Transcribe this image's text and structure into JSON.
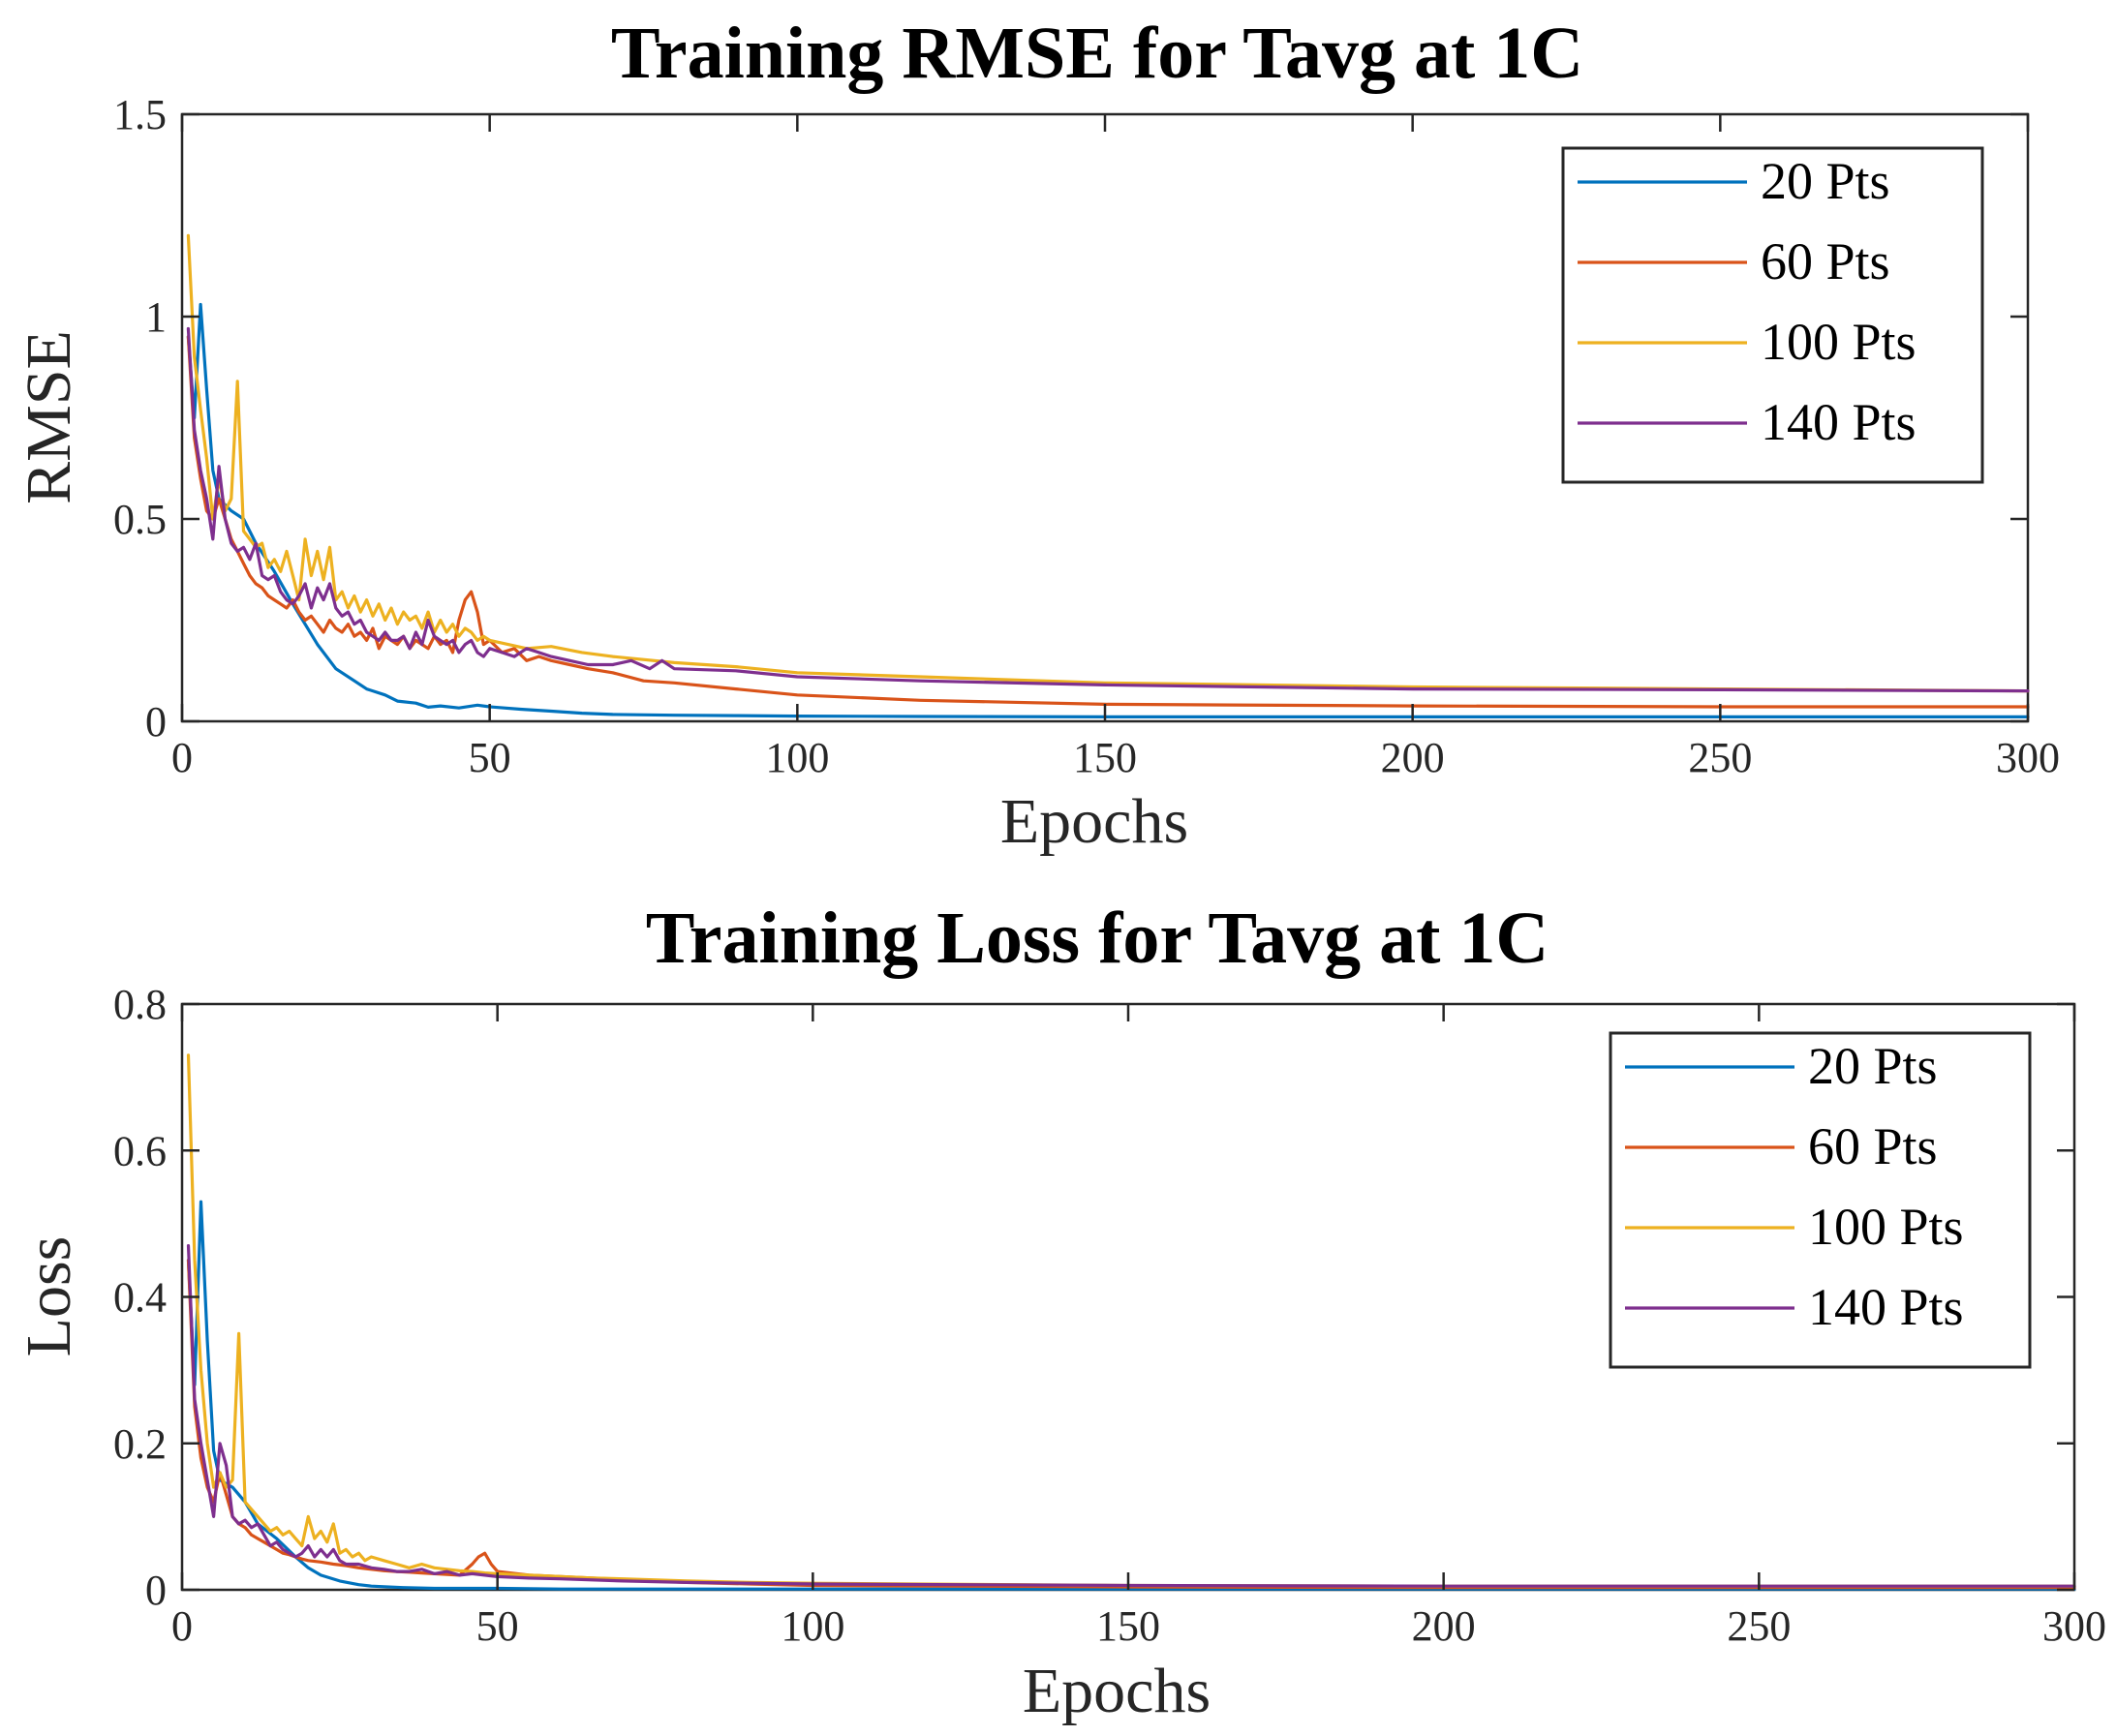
{
  "chart_data": [
    {
      "type": "line",
      "title": "Training RMSE for Tavg at 1C",
      "xlabel": "Epochs",
      "ylabel": "RMSE",
      "xlim": [
        0,
        300
      ],
      "ylim": [
        0,
        1.5
      ],
      "xticks": [
        0,
        50,
        100,
        150,
        200,
        250,
        300
      ],
      "xtick_labels": [
        "0",
        "50",
        "100",
        "150",
        "200",
        "250",
        "300"
      ],
      "yticks": [
        0,
        0.5,
        1,
        1.5
      ],
      "ytick_labels": [
        "0",
        "0.5",
        "1",
        "1.5"
      ],
      "grid": false,
      "legend_position": "top-right",
      "series": [
        {
          "name": "20 Pts",
          "color": "#0072BD",
          "x": [
            1,
            2,
            3,
            4,
            5,
            6,
            8,
            10,
            12,
            15,
            18,
            20,
            22,
            25,
            28,
            30,
            33,
            35,
            38,
            40,
            42,
            45,
            48,
            50,
            55,
            60,
            65,
            70,
            80,
            90,
            100,
            120,
            150,
            200,
            250,
            300
          ],
          "values": [
            0.95,
            0.75,
            1.03,
            0.82,
            0.62,
            0.55,
            0.52,
            0.5,
            0.44,
            0.37,
            0.29,
            0.24,
            0.19,
            0.13,
            0.1,
            0.08,
            0.065,
            0.05,
            0.045,
            0.035,
            0.038,
            0.033,
            0.04,
            0.036,
            0.03,
            0.025,
            0.02,
            0.017,
            0.015,
            0.014,
            0.013,
            0.012,
            0.011,
            0.011,
            0.011,
            0.011
          ]
        },
        {
          "name": "60 Pts",
          "color": "#D95319",
          "x": [
            1,
            2,
            3,
            4,
            5,
            6,
            7,
            8,
            9,
            10,
            11,
            12,
            13,
            14,
            15,
            16,
            17,
            18,
            19,
            20,
            21,
            22,
            23,
            24,
            25,
            26,
            27,
            28,
            29,
            30,
            31,
            32,
            33,
            34,
            35,
            36,
            37,
            38,
            39,
            40,
            41,
            42,
            43,
            44,
            45,
            46,
            47,
            48,
            49,
            50,
            52,
            54,
            56,
            58,
            60,
            63,
            66,
            70,
            75,
            80,
            90,
            100,
            120,
            150,
            200,
            250,
            300
          ],
          "values": [
            0.95,
            0.7,
            0.6,
            0.52,
            0.5,
            0.55,
            0.5,
            0.45,
            0.42,
            0.39,
            0.36,
            0.34,
            0.33,
            0.31,
            0.3,
            0.29,
            0.28,
            0.3,
            0.27,
            0.25,
            0.26,
            0.24,
            0.22,
            0.25,
            0.23,
            0.22,
            0.24,
            0.21,
            0.22,
            0.2,
            0.23,
            0.18,
            0.21,
            0.2,
            0.19,
            0.21,
            0.18,
            0.2,
            0.19,
            0.18,
            0.21,
            0.19,
            0.2,
            0.17,
            0.25,
            0.3,
            0.32,
            0.27,
            0.19,
            0.2,
            0.17,
            0.18,
            0.15,
            0.16,
            0.15,
            0.14,
            0.13,
            0.12,
            0.1,
            0.095,
            0.08,
            0.065,
            0.052,
            0.042,
            0.038,
            0.036,
            0.036
          ]
        },
        {
          "name": "100 Pts",
          "color": "#EDB120",
          "x": [
            1,
            2,
            3,
            4,
            5,
            6,
            7,
            8,
            9,
            10,
            11,
            12,
            13,
            14,
            15,
            16,
            17,
            18,
            19,
            20,
            21,
            22,
            23,
            24,
            25,
            26,
            27,
            28,
            29,
            30,
            31,
            32,
            33,
            34,
            35,
            36,
            37,
            38,
            39,
            40,
            41,
            42,
            43,
            44,
            45,
            46,
            47,
            48,
            49,
            50,
            53,
            56,
            60,
            65,
            70,
            80,
            90,
            100,
            120,
            150,
            200,
            250,
            300
          ],
          "values": [
            1.2,
            0.9,
            0.77,
            0.65,
            0.5,
            0.6,
            0.52,
            0.55,
            0.84,
            0.47,
            0.45,
            0.43,
            0.44,
            0.38,
            0.4,
            0.37,
            0.42,
            0.36,
            0.3,
            0.45,
            0.36,
            0.42,
            0.35,
            0.43,
            0.3,
            0.32,
            0.28,
            0.31,
            0.27,
            0.3,
            0.26,
            0.29,
            0.25,
            0.28,
            0.24,
            0.27,
            0.25,
            0.26,
            0.23,
            0.27,
            0.22,
            0.25,
            0.22,
            0.24,
            0.21,
            0.23,
            0.22,
            0.2,
            0.21,
            0.2,
            0.19,
            0.18,
            0.185,
            0.17,
            0.16,
            0.145,
            0.135,
            0.12,
            0.11,
            0.095,
            0.085,
            0.08,
            0.075
          ]
        },
        {
          "name": "140 Pts",
          "color": "#7E2F8E",
          "x": [
            1,
            2,
            3,
            4,
            5,
            6,
            7,
            8,
            9,
            10,
            11,
            12,
            13,
            14,
            15,
            16,
            17,
            18,
            19,
            20,
            21,
            22,
            23,
            24,
            25,
            26,
            27,
            28,
            29,
            30,
            31,
            32,
            33,
            34,
            35,
            36,
            37,
            38,
            39,
            40,
            41,
            42,
            43,
            44,
            45,
            46,
            47,
            48,
            49,
            50,
            52,
            54,
            56,
            58,
            60,
            63,
            66,
            70,
            73,
            76,
            78,
            80,
            90,
            100,
            120,
            150,
            200,
            250,
            300
          ],
          "values": [
            0.97,
            0.72,
            0.62,
            0.55,
            0.45,
            0.63,
            0.5,
            0.44,
            0.42,
            0.43,
            0.4,
            0.44,
            0.36,
            0.35,
            0.36,
            0.32,
            0.3,
            0.29,
            0.31,
            0.34,
            0.28,
            0.33,
            0.3,
            0.34,
            0.28,
            0.26,
            0.27,
            0.24,
            0.25,
            0.22,
            0.21,
            0.2,
            0.22,
            0.2,
            0.2,
            0.21,
            0.18,
            0.22,
            0.19,
            0.25,
            0.21,
            0.2,
            0.19,
            0.2,
            0.17,
            0.19,
            0.2,
            0.17,
            0.16,
            0.18,
            0.17,
            0.16,
            0.18,
            0.17,
            0.16,
            0.15,
            0.14,
            0.14,
            0.15,
            0.13,
            0.15,
            0.13,
            0.125,
            0.11,
            0.1,
            0.09,
            0.08,
            0.078,
            0.075
          ]
        }
      ]
    },
    {
      "type": "line",
      "title": "Training Loss for Tavg at 1C",
      "xlabel": "Epochs",
      "ylabel": "Loss",
      "xlim": [
        0,
        300
      ],
      "ylim": [
        0,
        0.8
      ],
      "xticks": [
        0,
        50,
        100,
        150,
        200,
        250,
        300
      ],
      "xtick_labels": [
        "0",
        "50",
        "100",
        "150",
        "200",
        "250",
        "300"
      ],
      "yticks": [
        0,
        0.2,
        0.4,
        0.6,
        0.8
      ],
      "ytick_labels": [
        "0",
        "0.2",
        "0.4",
        "0.6",
        "0.8"
      ],
      "grid": false,
      "legend_position": "top-right",
      "series": [
        {
          "name": "20 Pts",
          "color": "#0072BD",
          "x": [
            1,
            2,
            3,
            4,
            5,
            6,
            8,
            10,
            12,
            15,
            18,
            20,
            22,
            25,
            28,
            30,
            35,
            40,
            50,
            60,
            80,
            100,
            150,
            200,
            250,
            300
          ],
          "values": [
            0.45,
            0.28,
            0.53,
            0.34,
            0.19,
            0.15,
            0.14,
            0.12,
            0.09,
            0.07,
            0.045,
            0.03,
            0.02,
            0.012,
            0.007,
            0.005,
            0.003,
            0.002,
            0.002,
            0.001,
            0.001,
            0.001,
            0.001,
            0.001,
            0.001,
            0.001
          ]
        },
        {
          "name": "60 Pts",
          "color": "#D95319",
          "x": [
            1,
            2,
            3,
            4,
            5,
            6,
            7,
            8,
            9,
            10,
            11,
            12,
            13,
            14,
            15,
            16,
            17,
            18,
            19,
            20,
            22,
            24,
            26,
            28,
            30,
            32,
            34,
            36,
            38,
            40,
            42,
            44,
            46,
            47,
            48,
            49,
            50,
            55,
            60,
            70,
            80,
            90,
            100,
            150,
            200,
            250,
            300
          ],
          "values": [
            0.45,
            0.25,
            0.18,
            0.14,
            0.12,
            0.16,
            0.13,
            0.1,
            0.09,
            0.085,
            0.075,
            0.07,
            0.065,
            0.06,
            0.055,
            0.05,
            0.048,
            0.045,
            0.042,
            0.04,
            0.038,
            0.035,
            0.033,
            0.03,
            0.028,
            0.026,
            0.025,
            0.024,
            0.023,
            0.022,
            0.021,
            0.02,
            0.035,
            0.045,
            0.05,
            0.035,
            0.025,
            0.02,
            0.018,
            0.014,
            0.01,
            0.008,
            0.006,
            0.004,
            0.003,
            0.003,
            0.003
          ]
        },
        {
          "name": "100 Pts",
          "color": "#EDB120",
          "x": [
            1,
            2,
            3,
            4,
            5,
            6,
            7,
            8,
            9,
            10,
            11,
            12,
            13,
            14,
            15,
            16,
            17,
            18,
            19,
            20,
            21,
            22,
            23,
            24,
            25,
            26,
            27,
            28,
            29,
            30,
            32,
            34,
            36,
            38,
            40,
            42,
            44,
            46,
            48,
            50,
            55,
            60,
            65,
            70,
            80,
            90,
            100,
            150,
            200,
            250,
            300
          ],
          "values": [
            0.73,
            0.45,
            0.3,
            0.2,
            0.14,
            0.16,
            0.14,
            0.15,
            0.35,
            0.12,
            0.11,
            0.1,
            0.09,
            0.08,
            0.085,
            0.075,
            0.08,
            0.07,
            0.06,
            0.1,
            0.07,
            0.08,
            0.065,
            0.09,
            0.05,
            0.055,
            0.045,
            0.05,
            0.04,
            0.045,
            0.04,
            0.035,
            0.03,
            0.035,
            0.03,
            0.028,
            0.026,
            0.025,
            0.023,
            0.022,
            0.02,
            0.018,
            0.016,
            0.015,
            0.012,
            0.01,
            0.009,
            0.006,
            0.005,
            0.005,
            0.005
          ]
        },
        {
          "name": "140 Pts",
          "color": "#7E2F8E",
          "x": [
            1,
            2,
            3,
            4,
            5,
            6,
            7,
            8,
            9,
            10,
            11,
            12,
            13,
            14,
            15,
            16,
            17,
            18,
            19,
            20,
            21,
            22,
            23,
            24,
            25,
            26,
            28,
            30,
            32,
            34,
            36,
            38,
            40,
            42,
            44,
            46,
            48,
            50,
            55,
            60,
            70,
            80,
            90,
            100,
            150,
            200,
            250,
            300
          ],
          "values": [
            0.47,
            0.26,
            0.2,
            0.15,
            0.1,
            0.2,
            0.17,
            0.1,
            0.09,
            0.095,
            0.085,
            0.09,
            0.075,
            0.06,
            0.065,
            0.055,
            0.05,
            0.045,
            0.05,
            0.06,
            0.045,
            0.055,
            0.045,
            0.055,
            0.04,
            0.035,
            0.035,
            0.03,
            0.028,
            0.025,
            0.025,
            0.028,
            0.022,
            0.025,
            0.02,
            0.022,
            0.02,
            0.018,
            0.016,
            0.015,
            0.012,
            0.01,
            0.009,
            0.008,
            0.006,
            0.005,
            0.005,
            0.005
          ]
        }
      ]
    }
  ]
}
